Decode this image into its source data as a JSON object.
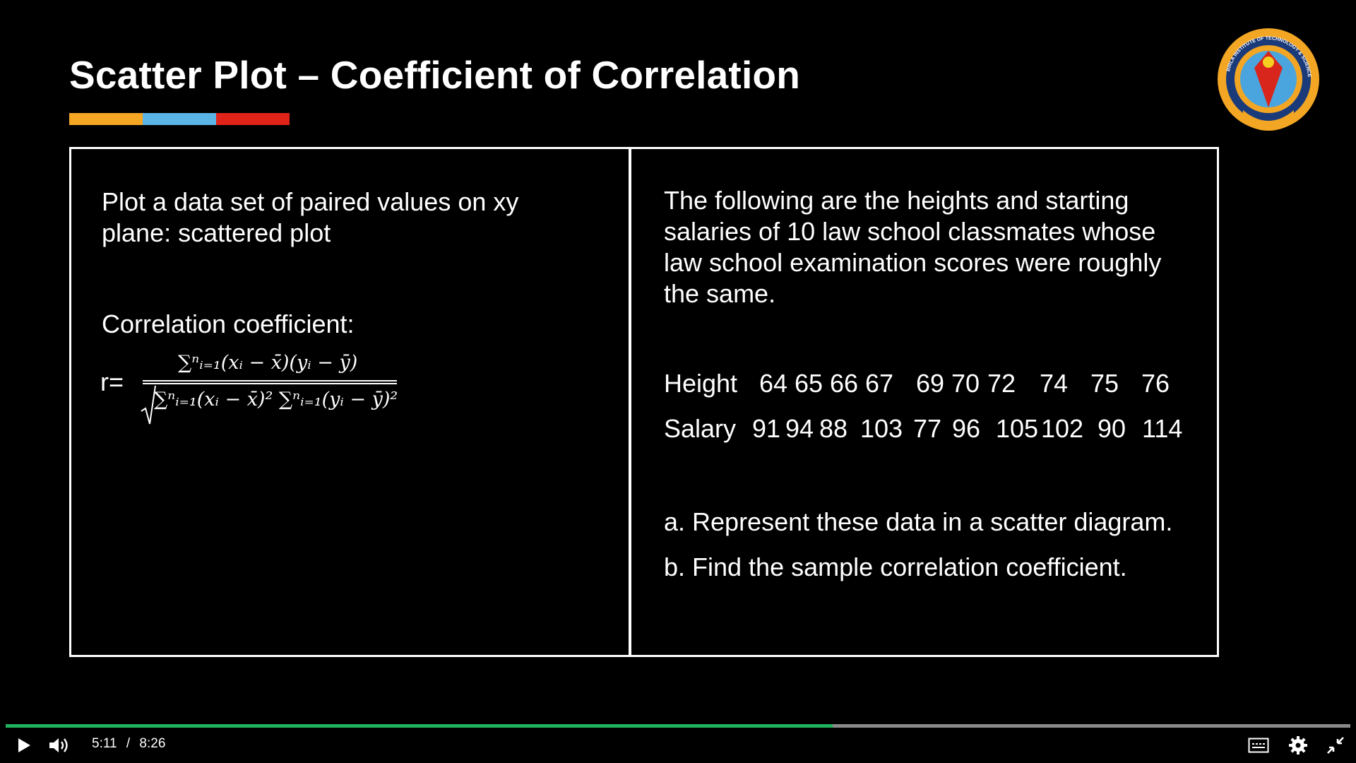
{
  "slide": {
    "title": "Scatter Plot – Coefficient of Correlation",
    "accent_colors": [
      "#f5a623",
      "#5ab4e6",
      "#e2231a"
    ],
    "left_panel": {
      "intro_line1": "Plot a data set of paired values on xy",
      "intro_line2": "plane: scattered plot",
      "coef_label": "Correlation coefficient:",
      "r_label": "r=",
      "numerator": "∑ⁿᵢ₌₁(xᵢ − x̄)(yᵢ − ȳ)",
      "denominator": "∑ⁿᵢ₌₁(xᵢ − x̄)² ∑ⁿᵢ₌₁(yᵢ − ȳ)²"
    },
    "right_panel": {
      "line1": "The following are the heights and starting",
      "line2": "salaries of 10 law school classmates whose",
      "line3": "law school examination scores were roughly",
      "line4": "the same.",
      "height_label": "Height",
      "heights": [
        "64",
        "65",
        "66",
        "67",
        "69",
        "70",
        "72",
        "74",
        "75",
        "76"
      ],
      "salary_label": "Salary",
      "salaries": [
        "91",
        "94",
        "88",
        "103",
        "77",
        "96",
        "105",
        "102",
        "90",
        "114"
      ],
      "task_a": "a. Represent these data in a scatter diagram.",
      "task_b": "b. Find the sample correlation coefficient."
    }
  },
  "player": {
    "current_time": "5:11",
    "separator": "/",
    "duration": "8:26",
    "progress_fraction": 0.615,
    "progress_color": "#1fb35b",
    "icons": [
      "play-icon",
      "volume-icon",
      "captions-icon",
      "settings-icon",
      "exit-fullscreen-icon"
    ]
  }
}
